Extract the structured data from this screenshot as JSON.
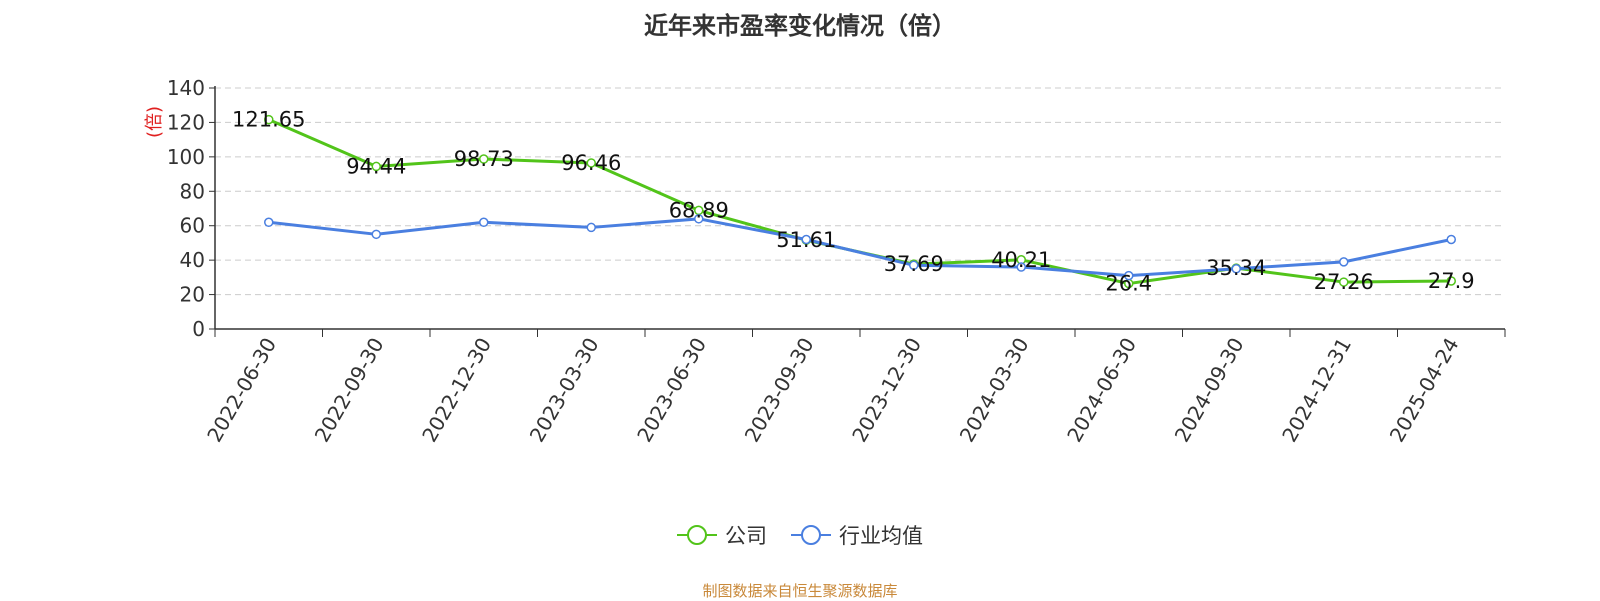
{
  "title": "近年来市盈率变化情况（倍）",
  "source_text": "制图数据来自恒生聚源数据库",
  "chart_data": {
    "type": "line",
    "title": "近年来市盈率变化情况（倍）",
    "ylabel": "(倍)",
    "xlabel": "",
    "ylim": [
      0,
      140
    ],
    "yticks": [
      0,
      20,
      40,
      60,
      80,
      100,
      120,
      140
    ],
    "grid": true,
    "legend_position": "bottom",
    "categories": [
      "2022-06-30",
      "2022-09-30",
      "2022-12-30",
      "2023-03-30",
      "2023-06-30",
      "2023-09-30",
      "2023-12-30",
      "2024-03-30",
      "2024-06-30",
      "2024-09-30",
      "2024-12-31",
      "2025-04-24"
    ],
    "series": [
      {
        "name": "公司",
        "color": "#52c41a",
        "values": [
          121.65,
          94.44,
          98.73,
          96.46,
          68.89,
          51.61,
          37.69,
          40.21,
          26.4,
          35.34,
          27.26,
          27.9
        ],
        "labels": [
          "121.65",
          "94.44",
          "98.73",
          "96.46",
          "68.89",
          "51.61",
          "37.69",
          "40.21",
          "26.4",
          "35.34",
          "27.26",
          "27.9"
        ]
      },
      {
        "name": "行业均值",
        "color": "#4a7fe0",
        "values": [
          62,
          55,
          62,
          59,
          64,
          52,
          37,
          36,
          31,
          35,
          39,
          52
        ]
      }
    ]
  },
  "colors": {
    "ylabel": "#e02020",
    "source": "#c9893a",
    "grid": "#cccccc",
    "axis": "#333333"
  }
}
